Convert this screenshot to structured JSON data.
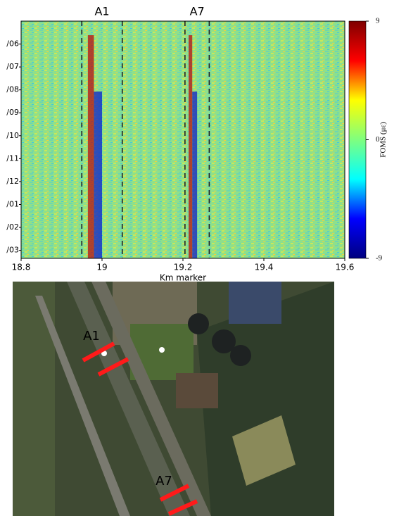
{
  "chart_data": {
    "type": "heatmap",
    "x_label": "Km marker",
    "xlim": [
      18.8,
      19.6
    ],
    "xticks": [
      18.8,
      19.0,
      19.2,
      19.4,
      19.6
    ],
    "categories": [
      "/06",
      "/07",
      "/08",
      "/09",
      "/10",
      "/11",
      "/12",
      "/01",
      "/02",
      "/03"
    ],
    "regions": [
      {
        "label": "A1",
        "xlim": [
          18.95,
          19.05
        ]
      },
      {
        "label": "A7",
        "xlim": [
          19.205,
          19.265
        ]
      }
    ],
    "colorbar_label": "FOMS (με)",
    "clim": [
      -9,
      9
    ],
    "cticks": [
      -9,
      0,
      9
    ],
    "colormap": [
      "#00007f",
      "#0000ff",
      "#00ffff",
      "#7fff7f",
      "#ffff00",
      "#ff0000",
      "#7f0000"
    ]
  },
  "map": {
    "labels": [
      "A1",
      "A7"
    ],
    "marker_color": "#ff1a1a"
  }
}
